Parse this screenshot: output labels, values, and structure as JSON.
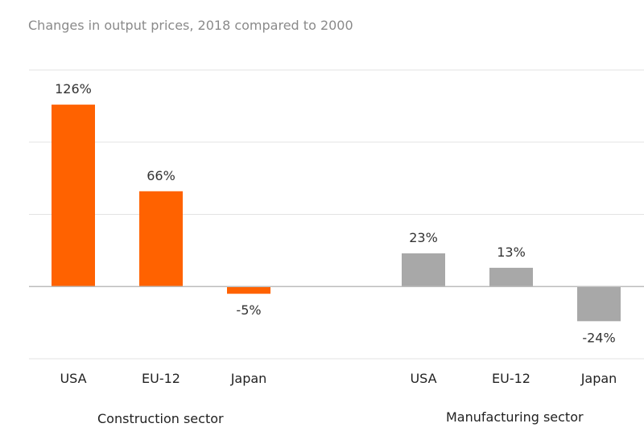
{
  "chart_data": {
    "type": "bar",
    "title": "Changes in output prices, 2018 compared to 2000",
    "xlabel": "",
    "ylabel": "",
    "ylim": [
      -50,
      150
    ],
    "y_gridlines": [
      -50,
      0,
      50,
      100,
      150
    ],
    "grid": true,
    "legend": "none",
    "value_suffix": "%",
    "groups": [
      {
        "name": "Construction sector",
        "color": "#ff6200",
        "categories": [
          "USA",
          "EU-12",
          "Japan"
        ],
        "values": [
          126,
          66,
          -5
        ]
      },
      {
        "name": "Manufacturing sector",
        "color": "#a8a8a8",
        "categories": [
          "USA",
          "EU-12",
          "Japan"
        ],
        "values": [
          23,
          13,
          -24
        ]
      }
    ]
  }
}
